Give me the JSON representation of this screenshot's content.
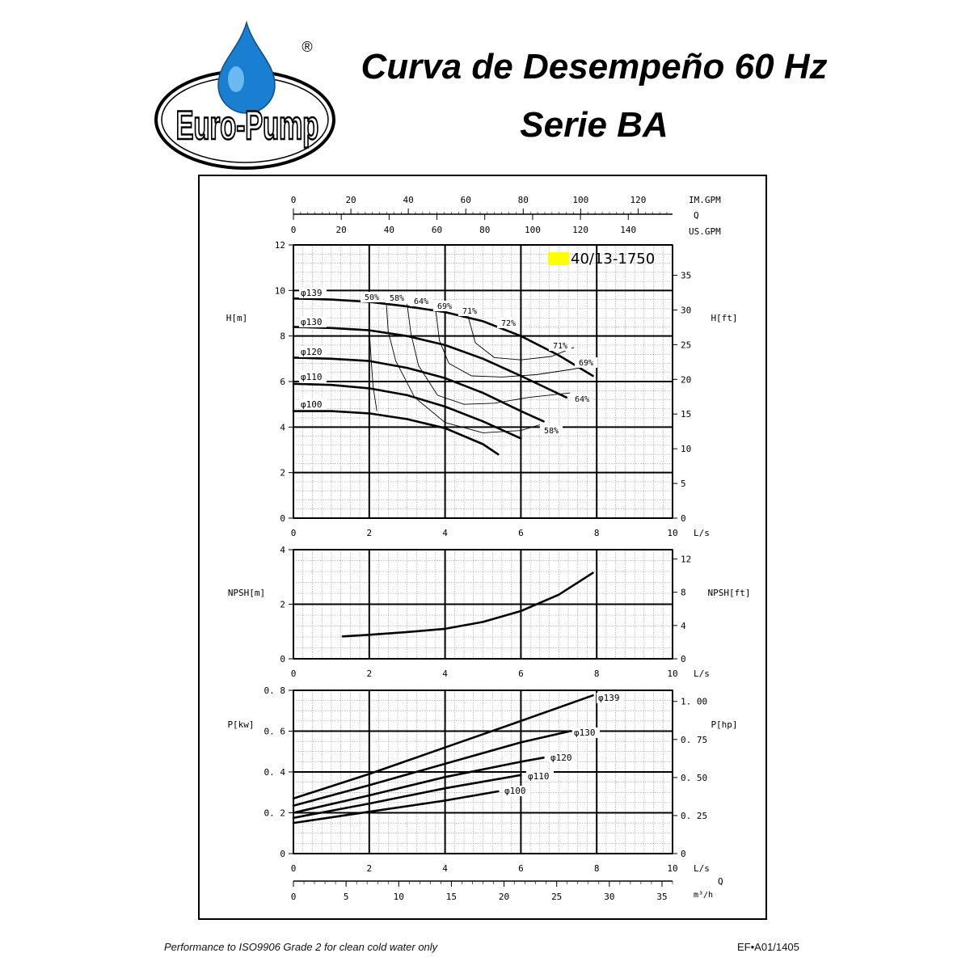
{
  "header": {
    "logo_text": "Euro-Pump",
    "registered_mark": "®",
    "title_line1": "Curva de Desempeño 60 Hz",
    "title_line2": "Serie BA"
  },
  "footer": {
    "note": "Performance to ISO9906 Grade 2 for clean cold water only",
    "code": "EF•A01/1405"
  },
  "colors": {
    "model_highlight": "#ffff00",
    "ink": "#000000",
    "logo_drop": "#1a7fd0"
  },
  "chart_data": [
    {
      "type": "line",
      "panel": "head",
      "model_label": "40/13-1750",
      "xlabel": "L/s",
      "ylabel": "H[m]",
      "ylabel_right": "H[ft]",
      "xlim": [
        0,
        10
      ],
      "ylim": [
        0,
        12
      ],
      "y2lim": [
        0,
        39.37
      ],
      "x_ticks": [
        0,
        2,
        4,
        6,
        8,
        10
      ],
      "y_ticks": [
        0,
        2,
        4,
        6,
        8,
        10,
        12
      ],
      "y2_ticks": [
        0,
        5,
        10,
        15,
        20,
        25,
        30,
        35
      ],
      "grid": true,
      "top_axes": {
        "q_label": "Q",
        "im_gpm": {
          "label": "IM.GPM",
          "ticks": [
            0,
            20,
            40,
            60,
            80,
            100,
            120
          ]
        },
        "us_gpm": {
          "label": "US.GPM",
          "ticks": [
            0,
            20,
            40,
            60,
            80,
            100,
            120,
            140
          ]
        }
      },
      "series": [
        {
          "name": "φ139",
          "x": [
            0,
            1,
            2,
            3,
            4,
            5,
            6,
            7,
            7.9
          ],
          "y": [
            9.65,
            9.6,
            9.5,
            9.3,
            9.05,
            8.65,
            8.0,
            7.15,
            6.25
          ]
        },
        {
          "name": "φ130",
          "x": [
            0,
            1,
            2,
            3,
            4,
            5,
            6,
            7.2
          ],
          "y": [
            8.4,
            8.35,
            8.25,
            8.0,
            7.6,
            7.0,
            6.25,
            5.3
          ]
        },
        {
          "name": "φ120",
          "x": [
            0,
            1,
            2,
            3,
            4,
            5,
            6,
            6.6
          ],
          "y": [
            7.05,
            7.0,
            6.9,
            6.6,
            6.15,
            5.5,
            4.7,
            4.25
          ]
        },
        {
          "name": "φ110",
          "x": [
            0,
            1,
            2,
            3,
            4,
            5,
            6.0
          ],
          "y": [
            5.9,
            5.85,
            5.7,
            5.4,
            4.9,
            4.25,
            3.5
          ]
        },
        {
          "name": "φ100",
          "x": [
            0,
            1,
            2,
            3,
            4,
            5,
            5.4
          ],
          "y": [
            4.7,
            4.7,
            4.6,
            4.35,
            3.95,
            3.25,
            2.8
          ]
        }
      ],
      "efficiency_curves": [
        {
          "label": "50%",
          "x": [
            2.0,
            2.0,
            2.05,
            2.1,
            2.2
          ],
          "y": [
            9.5,
            8.3,
            7.0,
            5.8,
            4.7
          ]
        },
        {
          "label": "58%",
          "x": [
            2.45,
            2.5,
            2.7,
            3.2,
            4.0,
            5.0,
            6.0,
            6.5
          ],
          "y": [
            9.45,
            8.2,
            6.9,
            5.3,
            4.2,
            3.75,
            3.85,
            4.1
          ]
        },
        {
          "label": "64%",
          "x": [
            3.0,
            3.1,
            3.3,
            3.8,
            4.5,
            5.3,
            6.2,
            7.3
          ],
          "y": [
            9.4,
            8.1,
            6.7,
            5.4,
            5.0,
            5.05,
            5.3,
            5.5
          ]
        },
        {
          "label": "69%",
          "x": [
            3.75,
            3.85,
            4.1,
            4.7,
            5.5,
            6.4,
            7.4,
            7.8
          ],
          "y": [
            9.2,
            7.8,
            6.8,
            6.25,
            6.2,
            6.3,
            6.55,
            6.7
          ]
        },
        {
          "label": "71%",
          "x": [
            4.6,
            4.8,
            5.3,
            6.0,
            6.8,
            7.4
          ],
          "y": [
            8.9,
            7.7,
            7.05,
            6.95,
            7.1,
            7.5
          ]
        }
      ],
      "annotations": [
        "φ139",
        "φ130",
        "φ120",
        "φ110",
        "φ100",
        "50%",
        "58%",
        "64%",
        "69%",
        "71%",
        "72%",
        "71%",
        "69%",
        "64%",
        "58%"
      ]
    },
    {
      "type": "line",
      "panel": "npsh",
      "xlabel": "L/s",
      "ylabel": "NPSH[m]",
      "ylabel_right": "NPSH[ft]",
      "xlim": [
        0,
        10
      ],
      "ylim": [
        0,
        4
      ],
      "y2lim": [
        0,
        13.12
      ],
      "x_ticks": [
        0,
        2,
        4,
        6,
        8,
        10
      ],
      "y_ticks": [
        0,
        2,
        4
      ],
      "y2_ticks": [
        0,
        4,
        8,
        12
      ],
      "grid": true,
      "series": [
        {
          "name": "NPSH",
          "x": [
            1.3,
            2,
            3,
            4,
            5,
            6,
            7,
            7.9
          ],
          "y": [
            0.82,
            0.88,
            0.98,
            1.1,
            1.35,
            1.75,
            2.35,
            3.15
          ]
        }
      ]
    },
    {
      "type": "line",
      "panel": "power",
      "xlabel": "L/s",
      "ylabel": "P[kw]",
      "ylabel_right": "P[hp]",
      "xlim": [
        0,
        10
      ],
      "ylim": [
        0,
        0.8
      ],
      "y2lim": [
        0,
        1.073
      ],
      "x_ticks": [
        0,
        2,
        4,
        6,
        8,
        10
      ],
      "y_ticks": [
        0,
        0.2,
        0.4,
        0.6,
        0.8
      ],
      "y_tick_labels": [
        "0",
        "0. 2",
        "0. 4",
        "0. 6",
        "0. 8"
      ],
      "y2_ticks": [
        0,
        0.25,
        0.5,
        0.75,
        1.0
      ],
      "y2_tick_labels": [
        "0",
        "0. 25",
        "0. 50",
        "0. 75",
        "1. 00"
      ],
      "grid": true,
      "bottom_axis": {
        "q_label": "Q",
        "unit": "m³/h",
        "ticks": [
          0,
          5,
          10,
          15,
          20,
          25,
          30,
          35
        ]
      },
      "series": [
        {
          "name": "φ139",
          "x": [
            0,
            2,
            4,
            6,
            7.9
          ],
          "y": [
            0.27,
            0.39,
            0.52,
            0.65,
            0.775
          ]
        },
        {
          "name": "φ130",
          "x": [
            0,
            2,
            4,
            6,
            7.3
          ],
          "y": [
            0.235,
            0.335,
            0.44,
            0.545,
            0.6
          ]
        },
        {
          "name": "φ120",
          "x": [
            0,
            2,
            4,
            6,
            6.6
          ],
          "y": [
            0.2,
            0.285,
            0.375,
            0.45,
            0.47
          ]
        },
        {
          "name": "φ110",
          "x": [
            0,
            2,
            4,
            6.0
          ],
          "y": [
            0.175,
            0.245,
            0.32,
            0.385
          ]
        },
        {
          "name": "φ100",
          "x": [
            0,
            2,
            4,
            5.4
          ],
          "y": [
            0.15,
            0.205,
            0.26,
            0.305
          ]
        }
      ]
    }
  ]
}
